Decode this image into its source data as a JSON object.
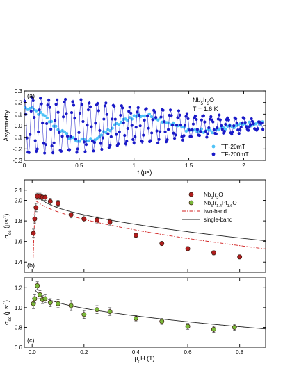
{
  "chart_data": [
    {
      "panel": "(a)",
      "type": "scatter",
      "annotation_lines": [
        "Nb5Ir3O",
        "T = 1.6 K"
      ],
      "annotation_sub": {
        "base": "Nb",
        "parts": [
          [
            "5",
            "sub"
          ],
          [
            "Ir",
            ""
          ],
          [
            "3",
            "sub"
          ],
          [
            "O",
            ""
          ]
        ]
      },
      "xlabel": "t (μs)",
      "ylabel": "Asymmetry",
      "xlim": [
        0,
        2.2
      ],
      "ylim": [
        -0.3,
        0.3
      ],
      "xticks": [
        0,
        0.5,
        1,
        1.5,
        2
      ],
      "yticks": [
        -0.3,
        -0.2,
        -0.1,
        0.0,
        0.1,
        0.2,
        0.3
      ],
      "xtick_labels": [
        "0",
        "0.5",
        "1",
        "1.5",
        "2"
      ],
      "ytick_labels": [
        "-0.3",
        "-0.2",
        "-0.1",
        "0.0",
        "0.1",
        "0.2",
        "0.3"
      ],
      "series": [
        {
          "name": "TF-20mT",
          "color": "#4fc3f7",
          "amplitude": 0.15,
          "freq_MHz": 0.9,
          "sigma": 1.8,
          "n": 110
        },
        {
          "name": "TF-200mT",
          "color": "#1a1ac8",
          "amplitude": 0.24,
          "freq_MHz": 13.5,
          "sigma": 1.95,
          "n": 230
        }
      ],
      "legend": "bottom-right"
    },
    {
      "panel": "(b)",
      "type": "scatter",
      "xlabel": "",
      "ylabel": "σsc (μs-1)",
      "ylim": [
        1.3,
        2.2
      ],
      "xlim": [
        -0.03,
        0.9
      ],
      "yticks": [
        1.4,
        1.6,
        1.8,
        2.0
      ],
      "ytick_labels": [
        "1.4",
        "1.6",
        "1.8",
        "2.0"
      ],
      "extra_ytick": {
        "value": 2.1,
        "label": "2.1"
      },
      "series": [
        {
          "name": "Nb5Ir3O",
          "color": "#b11d1d",
          "x": [
            0.005,
            0.01,
            0.015,
            0.02,
            0.03,
            0.04,
            0.05,
            0.07,
            0.1,
            0.15,
            0.2,
            0.25,
            0.3,
            0.4,
            0.5,
            0.6,
            0.7,
            0.8
          ],
          "y": [
            1.68,
            1.82,
            1.93,
            2.04,
            2.04,
            2.03,
            2.03,
            1.99,
            1.97,
            1.86,
            1.82,
            1.81,
            1.79,
            1.66,
            1.58,
            1.53,
            1.49,
            1.45
          ],
          "err": [
            0.04,
            0.04,
            0.04,
            0.03,
            0.03,
            0.03,
            0.03,
            0.03,
            0.03,
            0.03,
            0.03,
            0.03,
            0.03,
            0.02,
            0.02,
            0.02,
            0.02,
            0.02
          ]
        }
      ],
      "legend_entries": [
        {
          "name": "Nb5Ir3O",
          "color": "#b11d1d",
          "kind": "marker"
        },
        {
          "name": "Nb5Ir1.4Pt1.6O",
          "color": "#7ab93a",
          "kind": "marker"
        },
        {
          "name": "two-band",
          "color": "#d01c1c",
          "kind": "dashdot"
        },
        {
          "name": "single-band",
          "color": "#222222",
          "kind": "solid"
        }
      ],
      "fit_single": {
        "s0": 2.085,
        "decay": 0.7,
        "hc": 9.0,
        "xmin": 0.016
      },
      "fit_two": {
        "s0": 2.06,
        "decay": 0.72,
        "hc": 8.0,
        "xmin": 0.017
      }
    },
    {
      "panel": "(c)",
      "type": "scatter",
      "xlabel": "μ0H (T)",
      "ylabel": "σsc (μs-1)",
      "xlim": [
        -0.03,
        0.9
      ],
      "ylim": [
        0.6,
        1.3
      ],
      "xticks": [
        0.0,
        0.2,
        0.4,
        0.6,
        0.8
      ],
      "xtick_labels": [
        "0.0",
        "0.2",
        "0.4",
        "0.6",
        "0.8"
      ],
      "yticks": [
        0.6,
        0.8,
        1.0,
        1.2
      ],
      "ytick_labels": [
        "0.6",
        "0.8",
        "1.0",
        "1.2"
      ],
      "series": [
        {
          "name": "Nb5Ir1.4Pt1.6O",
          "color": "#7ab93a",
          "x": [
            0.005,
            0.01,
            0.02,
            0.03,
            0.04,
            0.05,
            0.07,
            0.1,
            0.15,
            0.2,
            0.25,
            0.3,
            0.4,
            0.5,
            0.6,
            0.7,
            0.78
          ],
          "y": [
            1.04,
            1.09,
            1.22,
            1.13,
            1.08,
            1.09,
            1.05,
            1.04,
            1.02,
            0.93,
            0.98,
            0.96,
            0.89,
            0.86,
            0.81,
            0.78,
            0.8
          ],
          "err": [
            0.05,
            0.04,
            0.04,
            0.04,
            0.04,
            0.04,
            0.04,
            0.04,
            0.05,
            0.04,
            0.04,
            0.04,
            0.03,
            0.03,
            0.03,
            0.03,
            0.03
          ]
        }
      ],
      "fit_single": {
        "s0": 1.18,
        "decay": 0.58,
        "hc": 6.0,
        "xmin": 0.01
      }
    }
  ]
}
